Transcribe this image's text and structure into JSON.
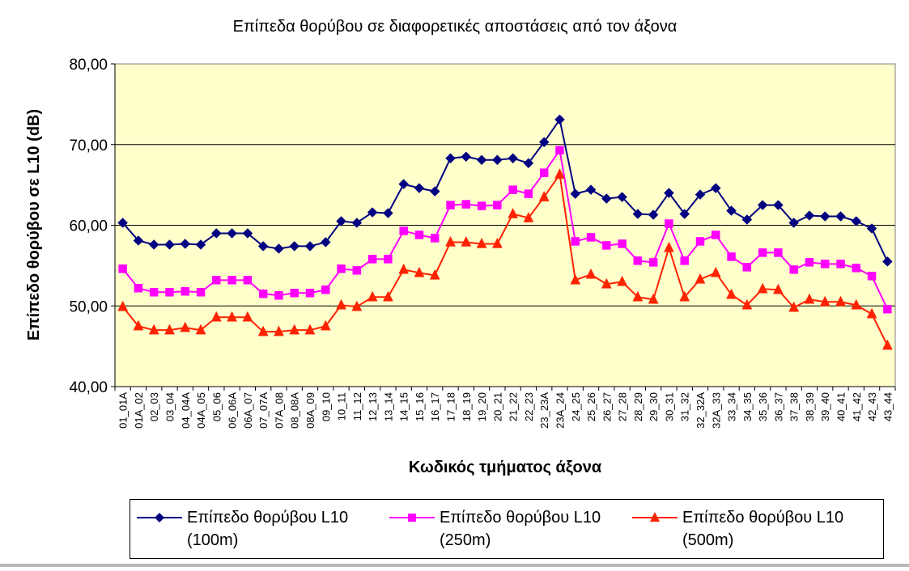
{
  "chart_data": {
    "type": "line",
    "title": "Επίπεδα θορύβου σε διαφορετικές αποστάσεις από τον άξονα",
    "xlabel": "Κωδικός τμήματος άξονα",
    "ylabel": "Επίπεδο θορύβου σε L10 (dB)",
    "ylim": [
      40,
      80
    ],
    "yticks": [
      40,
      50,
      60,
      70,
      80
    ],
    "ytick_labels": [
      "40,00",
      "50,00",
      "60,00",
      "70,00",
      "80,00"
    ],
    "grid": "horizontal",
    "legend_position": "bottom",
    "plot_background": "#ffffcc",
    "categories": [
      "01_01A",
      "01A_02",
      "02_03",
      "03_04",
      "04_04A",
      "04A_05",
      "05_06",
      "06_06A",
      "06A_07",
      "07_07A",
      "07A_08",
      "08_08A",
      "08A_09",
      "09_10",
      "10_11",
      "11_12",
      "12_13",
      "13_14",
      "14_15",
      "15_16",
      "16_17",
      "17_18",
      "18_19",
      "19_20",
      "20_21",
      "21_22",
      "22_23",
      "23_23A",
      "23A_24",
      "24_25",
      "25_26",
      "26_27",
      "27_28",
      "28_29",
      "29_30",
      "30_31",
      "31_32",
      "32_32A",
      "32A_33",
      "33_34",
      "34_35",
      "35_36",
      "36_37",
      "37_38",
      "38_39",
      "39_40",
      "40_41",
      "41_42",
      "42_43",
      "43_44"
    ],
    "series": [
      {
        "name": "Επίπεδο θορύβου L10\n(100m)",
        "color": "#000080",
        "marker": "diamond",
        "values": [
          60.3,
          58.1,
          57.6,
          57.6,
          57.7,
          57.6,
          59.0,
          59.0,
          59.0,
          57.4,
          57.1,
          57.4,
          57.4,
          57.9,
          60.5,
          60.3,
          61.6,
          61.5,
          65.1,
          64.6,
          64.2,
          68.3,
          68.5,
          68.1,
          68.1,
          68.3,
          67.7,
          70.3,
          73.1,
          63.9,
          64.4,
          63.3,
          63.5,
          61.4,
          61.3,
          64.0,
          61.4,
          63.8,
          64.6,
          61.8,
          60.7,
          62.5,
          62.5,
          60.3,
          61.2,
          61.1,
          61.1,
          60.5,
          59.6,
          55.5
        ]
      },
      {
        "name": "Επίπεδο θορύβου L10\n(250m)",
        "color": "#ff00ff",
        "marker": "square",
        "values": [
          54.6,
          52.2,
          51.7,
          51.7,
          51.8,
          51.7,
          53.2,
          53.2,
          53.2,
          51.5,
          51.3,
          51.6,
          51.6,
          52.0,
          54.6,
          54.4,
          55.8,
          55.8,
          59.3,
          58.8,
          58.4,
          62.5,
          62.6,
          62.4,
          62.5,
          64.4,
          63.9,
          66.5,
          69.3,
          58.0,
          58.5,
          57.5,
          57.7,
          55.6,
          55.4,
          60.2,
          55.6,
          58.0,
          58.8,
          56.1,
          54.8,
          56.6,
          56.6,
          54.5,
          55.4,
          55.2,
          55.2,
          54.7,
          53.7,
          49.6
        ]
      },
      {
        "name": "Επίπεδο θορύβου L10\n(500m)",
        "color": "#ff2200",
        "marker": "triangle",
        "values": [
          49.9,
          47.5,
          47.0,
          47.0,
          47.3,
          47.0,
          48.6,
          48.6,
          48.6,
          46.8,
          46.8,
          47.0,
          47.0,
          47.5,
          50.1,
          49.9,
          51.1,
          51.1,
          54.5,
          54.1,
          53.8,
          57.9,
          57.9,
          57.7,
          57.7,
          61.4,
          60.9,
          63.5,
          66.3,
          53.2,
          53.9,
          52.7,
          53.0,
          51.1,
          50.8,
          57.2,
          51.1,
          53.3,
          54.1,
          51.4,
          50.1,
          52.1,
          52.0,
          49.8,
          50.8,
          50.5,
          50.5,
          50.1,
          49.0,
          45.1
        ]
      }
    ]
  }
}
